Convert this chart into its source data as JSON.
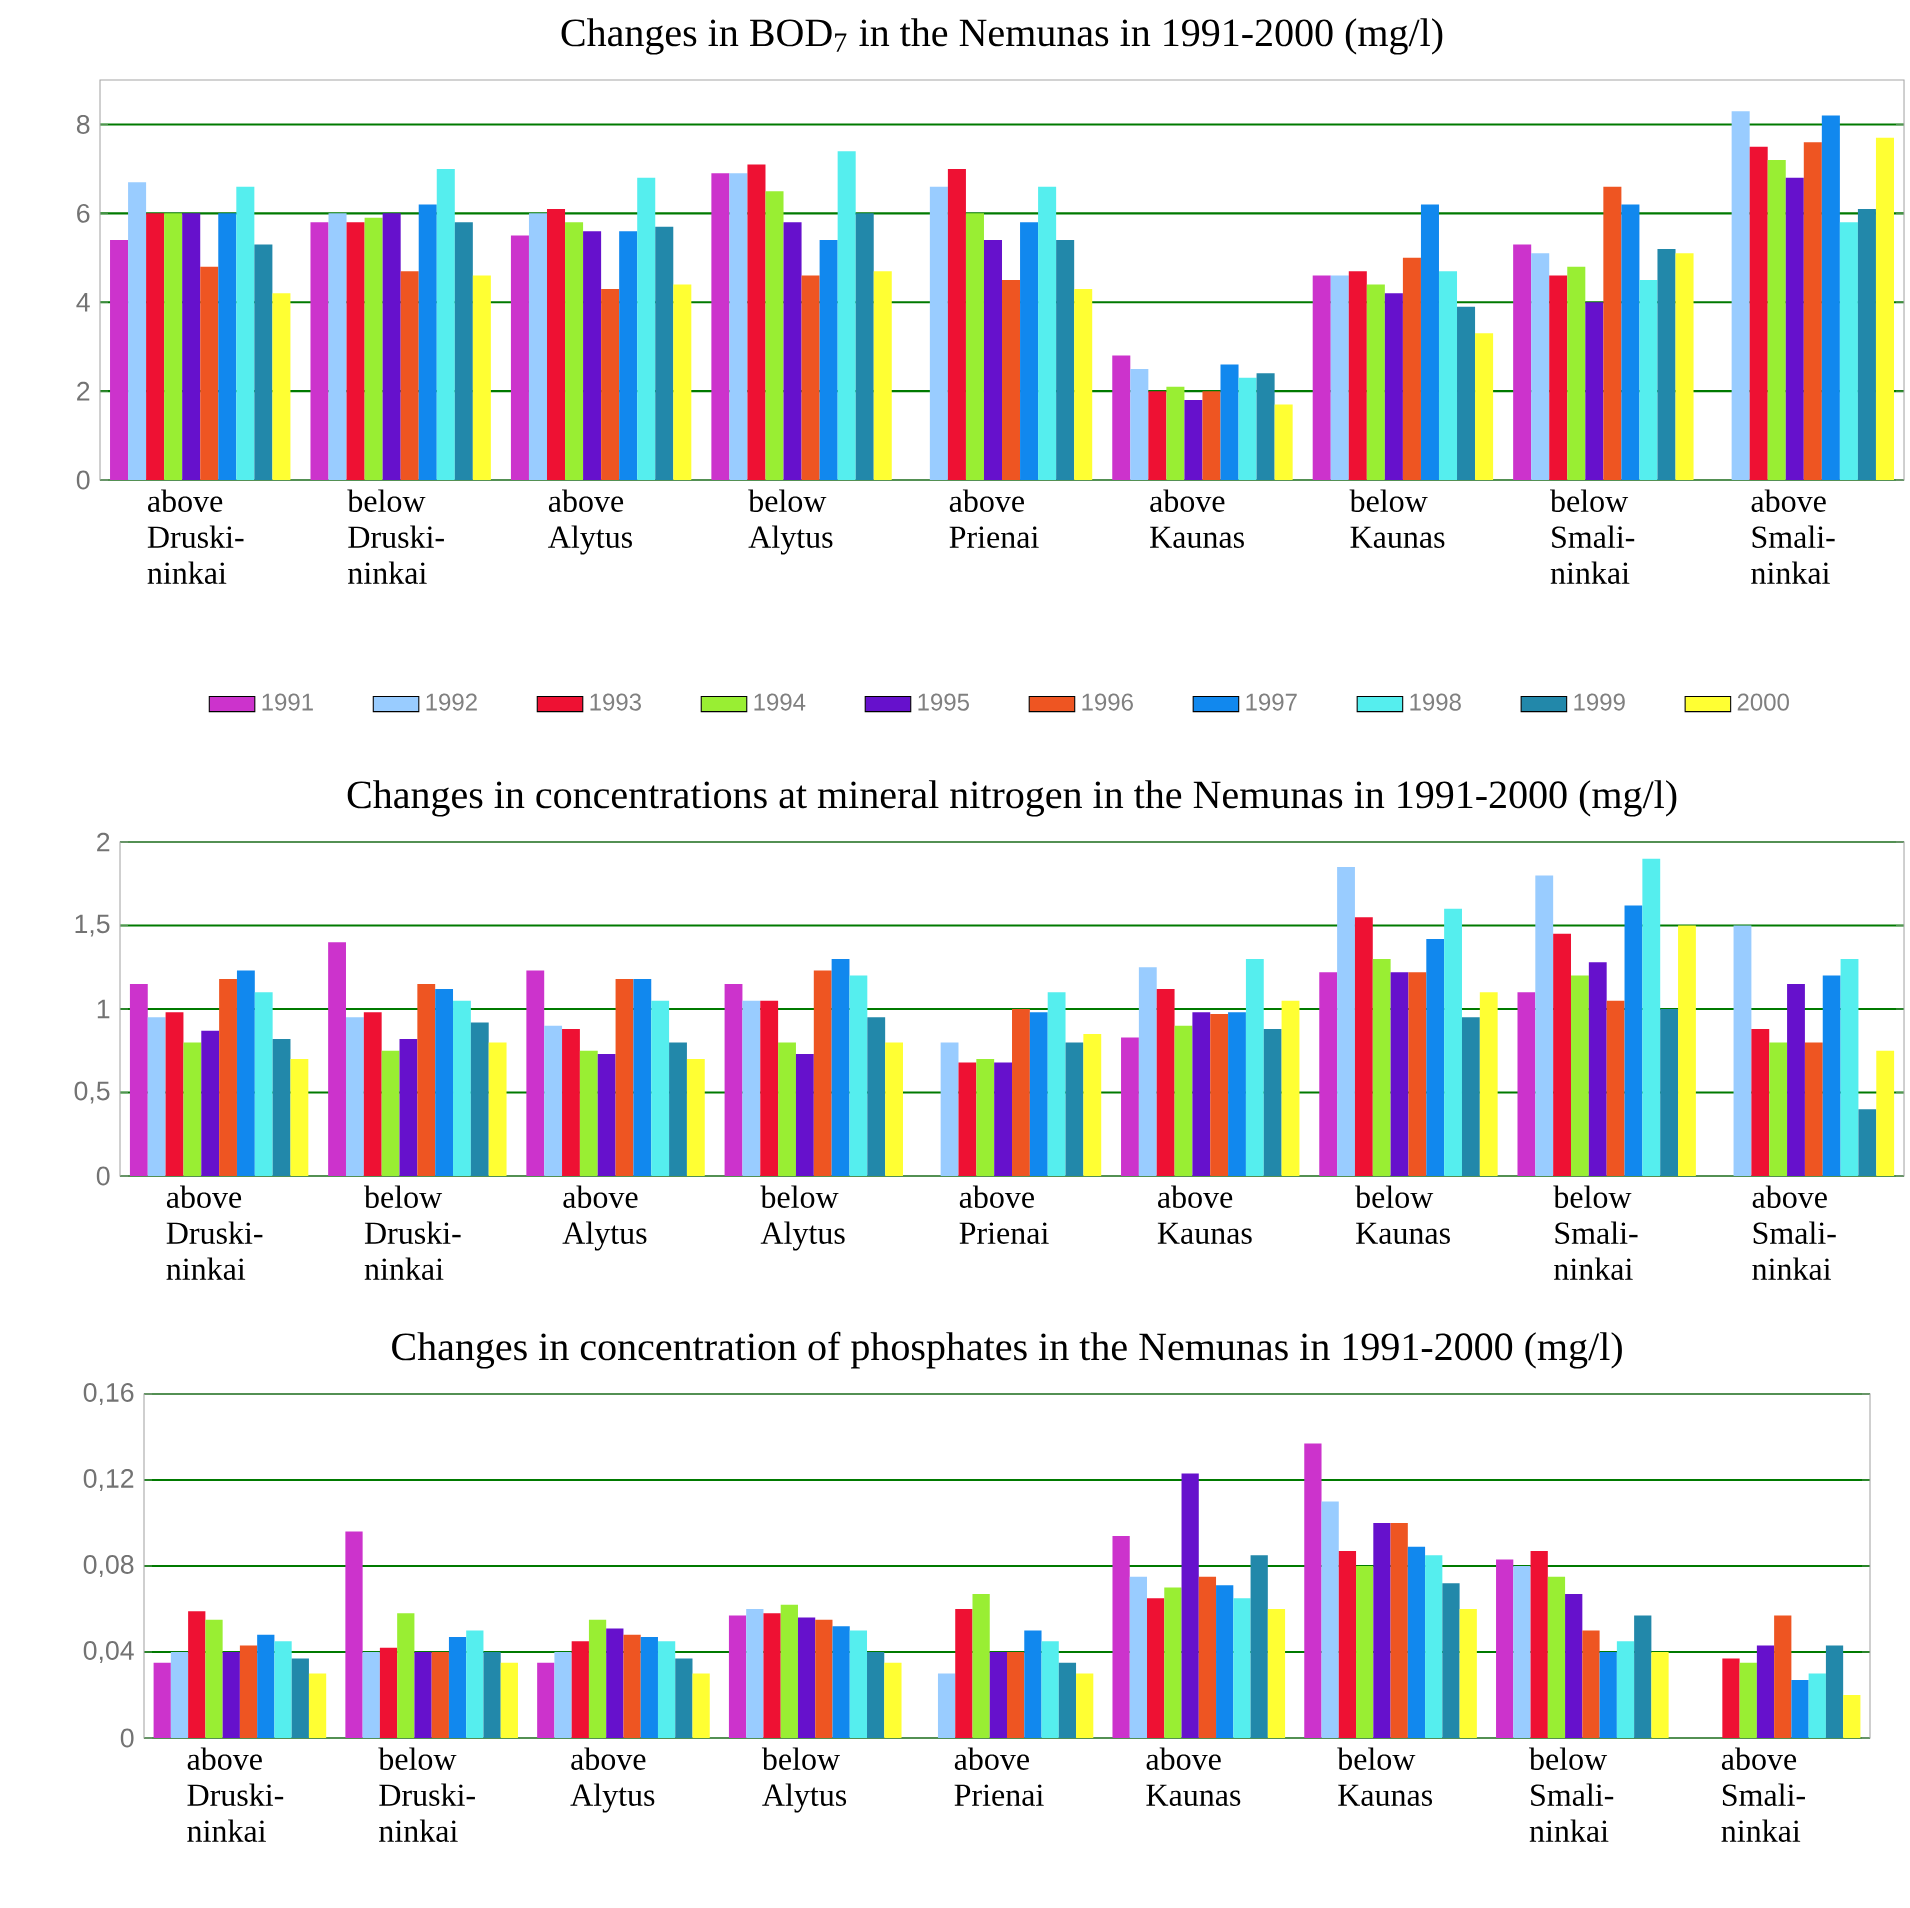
{
  "chart_data": [
    {
      "type": "bar",
      "title": "Changes in BOD$_{7}$ in the Nemunas in 1991-2000 (mg/l)",
      "categories": [
        "above Druski-ninkai",
        "below Druski-ninkai",
        "above Alytus",
        "below Alytus",
        "above Prienai",
        "above Kaunas",
        "below Kaunas",
        "below Smali-ninkai",
        "above Smali-ninkai"
      ],
      "series": [
        {
          "name": "1991",
          "color": "#cc33cc",
          "values": [
            5.4,
            5.8,
            5.5,
            6.9,
            null,
            2.8,
            4.6,
            5.3,
            null
          ]
        },
        {
          "name": "1992",
          "color": "#99ccff",
          "values": [
            6.7,
            6.0,
            6.0,
            6.9,
            6.6,
            2.5,
            4.6,
            5.1,
            8.3
          ]
        },
        {
          "name": "1993",
          "color": "#ee1133",
          "values": [
            6.0,
            5.8,
            6.1,
            7.1,
            7.0,
            2.0,
            4.7,
            4.6,
            7.5
          ]
        },
        {
          "name": "1994",
          "color": "#99ee33",
          "values": [
            6.0,
            5.9,
            5.8,
            6.5,
            6.0,
            2.1,
            4.4,
            4.8,
            7.2
          ]
        },
        {
          "name": "1995",
          "color": "#6611cc",
          "values": [
            6.0,
            6.0,
            5.6,
            5.8,
            5.4,
            1.8,
            4.2,
            4.0,
            6.8
          ]
        },
        {
          "name": "1996",
          "color": "#ee5522",
          "values": [
            4.8,
            4.7,
            4.3,
            4.6,
            4.5,
            2.0,
            5.0,
            6.6,
            7.6
          ]
        },
        {
          "name": "1997",
          "color": "#1188ee",
          "values": [
            6.0,
            6.2,
            5.6,
            5.4,
            5.8,
            2.6,
            6.2,
            6.2,
            8.2
          ]
        },
        {
          "name": "1998",
          "color": "#55eeee",
          "values": [
            6.6,
            7.0,
            6.8,
            7.4,
            6.6,
            2.3,
            4.7,
            4.5,
            5.8
          ]
        },
        {
          "name": "1999",
          "color": "#2288aa",
          "values": [
            5.3,
            5.8,
            5.7,
            6.0,
            5.4,
            2.4,
            3.9,
            5.2,
            6.1
          ]
        },
        {
          "name": "2000",
          "color": "#ffff33",
          "values": [
            4.2,
            4.6,
            4.4,
            4.7,
            4.3,
            1.7,
            3.3,
            5.1,
            7.7
          ]
        }
      ],
      "ylim": [
        0,
        9
      ],
      "yticks": [
        0,
        2,
        4,
        6,
        8
      ],
      "grid": "y",
      "legend": "bottom"
    },
    {
      "type": "bar",
      "title": "Changes in concentrations at mineral nitrogen in the Nemunas in 1991-2000 (mg/l)",
      "categories": [
        "above Druski-ninkai",
        "below Druski-ninkai",
        "above Alytus",
        "below Alytus",
        "above Prienai",
        "above Kaunas",
        "below Kaunas",
        "below Smali-ninkai",
        "above Smali-ninkai"
      ],
      "series": [
        {
          "color": "#cc33cc",
          "values": [
            1.15,
            1.4,
            1.23,
            1.15,
            null,
            0.83,
            1.22,
            1.1,
            null
          ]
        },
        {
          "color": "#99ccff",
          "values": [
            0.95,
            0.95,
            0.9,
            1.05,
            0.8,
            1.25,
            1.85,
            1.8,
            1.5
          ]
        },
        {
          "color": "#ee1133",
          "values": [
            0.98,
            0.98,
            0.88,
            1.05,
            0.68,
            1.12,
            1.55,
            1.45,
            0.88
          ]
        },
        {
          "color": "#99ee33",
          "values": [
            0.8,
            0.75,
            0.75,
            0.8,
            0.7,
            0.9,
            1.3,
            1.2,
            0.8
          ]
        },
        {
          "color": "#6611cc",
          "values": [
            0.87,
            0.82,
            0.73,
            0.73,
            0.68,
            0.98,
            1.22,
            1.28,
            1.15
          ]
        },
        {
          "color": "#ee5522",
          "values": [
            1.18,
            1.15,
            1.18,
            1.23,
            1.0,
            0.97,
            1.22,
            1.05,
            0.8
          ]
        },
        {
          "color": "#1188ee",
          "values": [
            1.23,
            1.12,
            1.18,
            1.3,
            0.98,
            0.98,
            1.42,
            1.62,
            1.2
          ]
        },
        {
          "color": "#55eeee",
          "values": [
            1.1,
            1.05,
            1.05,
            1.2,
            1.1,
            1.3,
            1.6,
            1.9,
            1.3
          ]
        },
        {
          "color": "#2288aa",
          "values": [
            0.82,
            0.92,
            0.8,
            0.95,
            0.8,
            0.88,
            0.95,
            1.0,
            0.4
          ]
        },
        {
          "color": "#ffff33",
          "values": [
            0.7,
            0.8,
            0.7,
            0.8,
            0.85,
            1.05,
            1.1,
            1.5,
            0.75
          ]
        }
      ],
      "ylim": [
        0,
        2
      ],
      "yticks": [
        0,
        {
          "value": 0.5,
          "label": "0,5"
        },
        1,
        {
          "value": 1.5,
          "label": "1,5"
        },
        2
      ],
      "grid": "y"
    },
    {
      "type": "bar",
      "title": "Changes in concentration of phosphates in the Nemunas in 1991-2000 (mg/l)",
      "categories": [
        "above Druski-ninkai",
        "below Druski-ninkai",
        "above Alytus",
        "below Alytus",
        "above Prienai",
        "above Kaunas",
        "below Kaunas",
        "below Smali-ninkai",
        "above Smali-ninkai"
      ],
      "series": [
        {
          "color": "#cc33cc",
          "values": [
            0.035,
            0.096,
            0.035,
            0.057,
            null,
            0.094,
            0.137,
            0.083,
            null
          ]
        },
        {
          "color": "#99ccff",
          "values": [
            0.04,
            0.04,
            0.04,
            0.06,
            0.03,
            0.075,
            0.11,
            0.08,
            null
          ]
        },
        {
          "color": "#ee1133",
          "values": [
            0.059,
            0.042,
            0.045,
            0.058,
            0.06,
            0.065,
            0.087,
            0.087,
            0.037
          ]
        },
        {
          "color": "#99ee33",
          "values": [
            0.055,
            0.058,
            0.055,
            0.062,
            0.067,
            0.07,
            0.08,
            0.075,
            0.035
          ]
        },
        {
          "color": "#6611cc",
          "values": [
            0.04,
            0.04,
            0.051,
            0.056,
            0.04,
            0.123,
            0.1,
            0.067,
            0.043
          ]
        },
        {
          "color": "#ee5522",
          "values": [
            0.043,
            0.04,
            0.048,
            0.055,
            0.04,
            0.075,
            0.1,
            0.05,
            0.057
          ]
        },
        {
          "color": "#1188ee",
          "values": [
            0.048,
            0.047,
            0.047,
            0.052,
            0.05,
            0.071,
            0.089,
            0.04,
            0.027
          ]
        },
        {
          "color": "#55eeee",
          "values": [
            0.045,
            0.05,
            0.045,
            0.05,
            0.045,
            0.065,
            0.085,
            0.045,
            0.03
          ]
        },
        {
          "color": "#2288aa",
          "values": [
            0.037,
            0.04,
            0.037,
            0.04,
            0.035,
            0.085,
            0.072,
            0.057,
            0.043
          ]
        },
        {
          "color": "#ffff33",
          "values": [
            0.03,
            0.035,
            0.03,
            0.035,
            0.03,
            0.06,
            0.06,
            0.04,
            0.02
          ]
        }
      ],
      "ylim": [
        0,
        0.16
      ],
      "yticks": [
        0,
        {
          "value": 0.04,
          "label": "0,04"
        },
        {
          "value": 0.08,
          "label": "0,08"
        },
        {
          "value": 0.12,
          "label": "0,12"
        },
        {
          "value": 0.16,
          "label": "0,16"
        }
      ],
      "grid": "y"
    }
  ]
}
